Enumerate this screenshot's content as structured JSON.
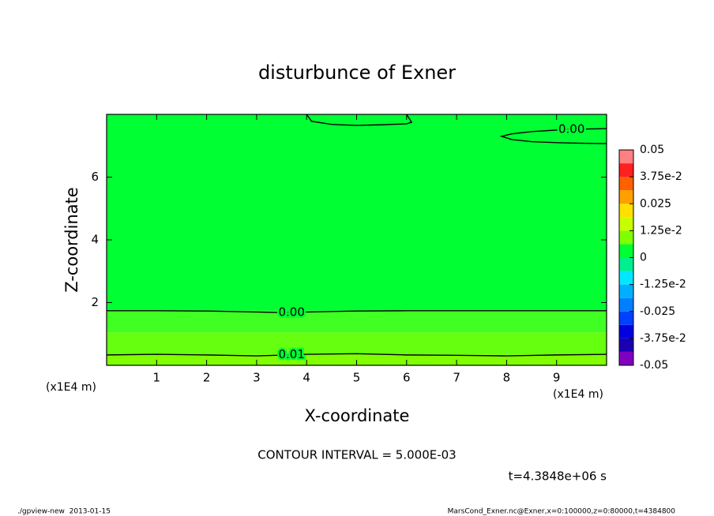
{
  "chart_data": {
    "type": "contour",
    "title": "disturbunce of Exner",
    "xlabel": "X-coordinate",
    "ylabel": "Z-coordinate",
    "x_unit_label": "(x1E4 m)",
    "y_unit_label": "(x1E4 m)",
    "xlim": [
      0,
      10
    ],
    "ylim": [
      0,
      8
    ],
    "xticks": [
      1,
      2,
      3,
      4,
      5,
      6,
      7,
      8,
      9
    ],
    "yticks": [
      2,
      4,
      6
    ],
    "fill_bands": [
      {
        "ylim": [
          0,
          0.35
        ],
        "color": "#80ff00"
      },
      {
        "ylim": [
          0.35,
          1.05
        ],
        "color": "#66ff10"
      },
      {
        "ylim": [
          1.05,
          1.74
        ],
        "color": "#40ff22"
      },
      {
        "ylim": [
          1.74,
          8
        ],
        "color": "#00ff33"
      }
    ],
    "contours": [
      {
        "level": 0,
        "label": "0.00",
        "x": [
          0,
          1,
          2,
          3,
          3.5,
          4,
          5,
          6,
          7,
          8,
          9,
          10
        ],
        "y": [
          1.74,
          1.74,
          1.73,
          1.7,
          1.68,
          1.7,
          1.73,
          1.74,
          1.74,
          1.74,
          1.74,
          1.74
        ]
      },
      {
        "level": 0.01,
        "label": "0.01",
        "x": [
          0,
          1,
          2,
          3,
          4,
          5,
          6,
          7,
          8,
          9,
          10
        ],
        "y": [
          0.33,
          0.35,
          0.33,
          0.3,
          0.35,
          0.37,
          0.33,
          0.32,
          0.3,
          0.33,
          0.35
        ]
      },
      {
        "level": 0,
        "label": "0.00",
        "x": [
          10,
          9.5,
          9,
          8.5,
          8.1,
          7.9,
          8.1,
          8.5,
          9,
          9.5,
          10
        ],
        "y": [
          7.55,
          7.53,
          7.5,
          7.45,
          7.38,
          7.3,
          7.2,
          7.13,
          7.1,
          7.08,
          7.07
        ]
      },
      {
        "level": 0.005,
        "x": [
          4.0,
          4.1,
          4.5,
          5,
          5.5,
          6.0,
          6.1,
          6.0
        ],
        "y": [
          8,
          7.78,
          7.68,
          7.65,
          7.67,
          7.7,
          7.75,
          8
        ]
      }
    ],
    "colorbar": {
      "clim": [
        -0.05,
        0.05
      ],
      "levels": [
        -0.05,
        -0.04375,
        -0.0375,
        -0.03125,
        -0.025,
        -0.01875,
        -0.0125,
        -0.00625,
        0,
        0.00625,
        0.0125,
        0.01875,
        0.025,
        0.03125,
        0.0375,
        0.04375,
        0.05
      ],
      "colors": [
        "#8000c0",
        "#1a00b0",
        "#0000e0",
        "#0040ff",
        "#0080ff",
        "#00b0ff",
        "#00e8ff",
        "#00f090",
        "#00ff33",
        "#80ff00",
        "#c8ff00",
        "#ffe000",
        "#ffa000",
        "#ff6000",
        "#ff2020",
        "#ff8080"
      ],
      "ticks": [
        -0.05,
        {
          "value": -0.0375,
          "label": "-3.75e-2"
        },
        -0.025,
        {
          "value": -0.0125,
          "label": "-1.25e-2"
        },
        0,
        {
          "value": 0.0125,
          "label": "1.25e-2"
        },
        0.025,
        {
          "value": 0.0375,
          "label": "3.75e-2"
        },
        0.05
      ]
    },
    "contour_interval_text": "CONTOUR INTERVAL = 5.000E-03",
    "time_text": "t=4.3848e+06 s",
    "footer_left": "./gpview-new  2013-01-15",
    "footer_right": "MarsCond_Exner.nc@Exner,x=0:100000,z=0:80000,t=4384800"
  }
}
